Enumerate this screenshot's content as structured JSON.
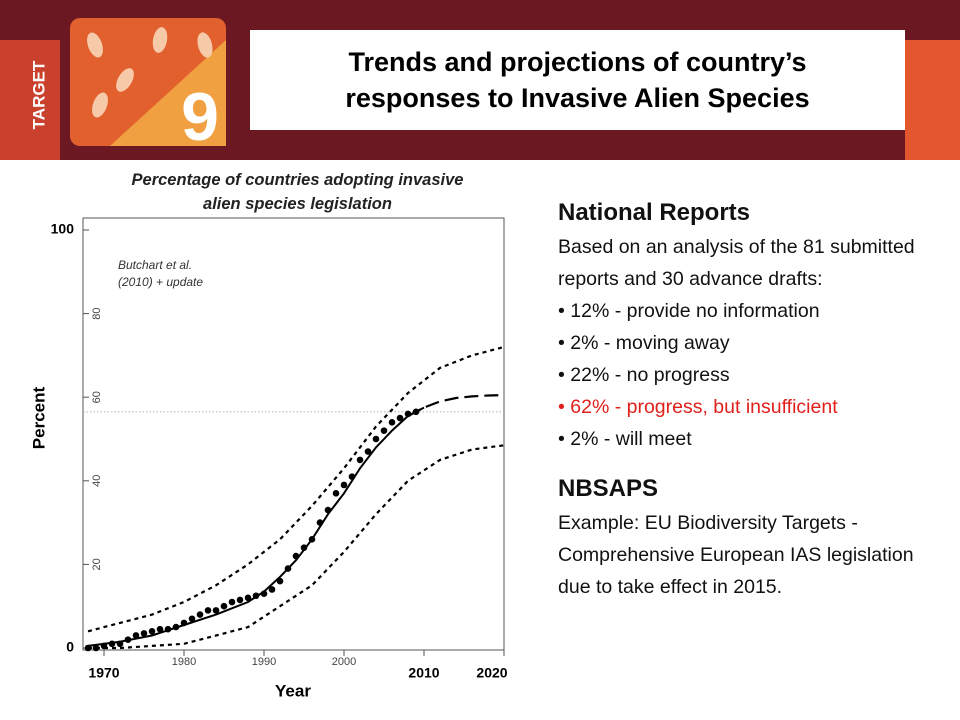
{
  "header": {
    "badge": "TARGET",
    "number": "9",
    "title_lines": [
      "Trends and projections of country’s",
      "responses to Invasive Alien Species"
    ]
  },
  "chart_data": {
    "type": "line",
    "title": "Percentage of countries adopting invasive alien species legislation",
    "annotation_lines": [
      "Butchart et al.",
      "(2010) + update"
    ],
    "x_label": "Year",
    "y_label": "Percent",
    "xlim": [
      1968,
      2020
    ],
    "ylim": [
      0,
      100
    ],
    "xticks": [
      1970,
      1980,
      1990,
      2000,
      2010,
      2020
    ],
    "yticks": [
      0,
      20,
      40,
      60,
      80,
      100
    ],
    "reference_line": {
      "value": 56.5,
      "color": "#b0b0b0"
    },
    "series": [
      {
        "style": "dots",
        "color": "#000000",
        "x": [
          1968,
          1969,
          1970,
          1971,
          1972,
          1973,
          1974,
          1975,
          1976,
          1977,
          1978,
          1979,
          1980,
          1981,
          1982,
          1983,
          1984,
          1985,
          1986,
          1987,
          1988,
          1989,
          1990,
          1991,
          1992,
          1993,
          1994,
          1995,
          1996,
          1997,
          1998,
          1999,
          2000,
          2001,
          2002,
          2003,
          2004,
          2005,
          2006,
          2007,
          2008,
          2009
        ],
        "values": [
          0,
          0,
          0.5,
          1,
          1,
          2,
          3,
          3.5,
          4,
          4.5,
          4.5,
          5,
          6,
          7,
          8,
          9,
          9,
          10,
          11,
          11.5,
          12,
          12.5,
          13,
          14,
          16,
          19,
          22,
          24,
          26,
          30,
          33,
          37,
          39,
          41,
          45,
          47,
          50,
          52,
          54,
          55,
          56,
          56.5
        ]
      },
      {
        "style": "solid",
        "color": "#000000",
        "x": [
          1968,
          1972,
          1976,
          1980,
          1984,
          1988,
          1990,
          1992,
          1994,
          1996,
          1998,
          2000,
          2002,
          2004,
          2006,
          2008,
          2010
        ],
        "values": [
          0.5,
          1.5,
          3,
          5.5,
          8,
          11,
          13.5,
          17,
          21,
          26,
          32,
          37,
          43,
          48,
          52,
          55.5,
          57.5
        ]
      },
      {
        "style": "dashed",
        "color": "#000000",
        "x": [
          2008,
          2010,
          2012,
          2014,
          2016,
          2018,
          2020
        ],
        "values": [
          55.5,
          57.5,
          59,
          59.8,
          60.2,
          60.4,
          60.5
        ]
      },
      {
        "style": "dotted",
        "color": "#000000",
        "x": [
          1968,
          1972,
          1976,
          1980,
          1984,
          1988,
          1992,
          1996,
          2000,
          2004,
          2008,
          2012,
          2016,
          2020
        ],
        "values": [
          4,
          6,
          8,
          11,
          15,
          20,
          26,
          34,
          43,
          53,
          61,
          67,
          70,
          72
        ]
      },
      {
        "style": "dotted",
        "color": "#000000",
        "x": [
          1968,
          1972,
          1976,
          1980,
          1984,
          1988,
          1992,
          1996,
          2000,
          2004,
          2008,
          2012,
          2016,
          2020
        ],
        "values": [
          0,
          0,
          0.5,
          1,
          3,
          5,
          10,
          15,
          23,
          32,
          40,
          45,
          47.5,
          48.5
        ]
      }
    ]
  },
  "panel": {
    "heading": "National Reports",
    "intro": "Based on an analysis of the 81 submitted reports and 30 advance drafts:",
    "bullets": [
      {
        "text": "12% - provide no information"
      },
      {
        "text": "2% - moving away"
      },
      {
        "text": "22% - no progress"
      },
      {
        "text": "62% - progress, but insufficient",
        "color": "#e0201c"
      },
      {
        "text": "2% - will meet"
      }
    ],
    "heading2": "NBSAPS",
    "example": "Example:  EU Biodiversity Targets - Comprehensive European IAS legislation due to take effect in 2015."
  }
}
